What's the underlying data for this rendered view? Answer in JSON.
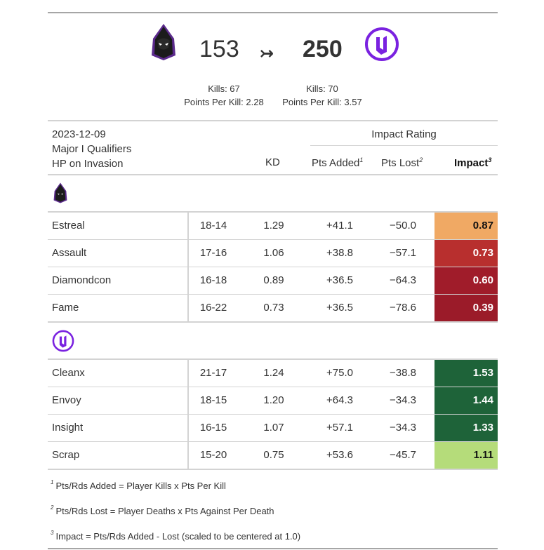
{
  "score": {
    "home_score": "153",
    "away_score": "250",
    "arrow": "↣",
    "home_stats": {
      "kills": "Kills: 67",
      "ppk": "Points Per Kill: 2.28"
    },
    "away_stats": {
      "kills": "Kills: 70",
      "ppk": "Points Per Kill: 3.57"
    }
  },
  "header": {
    "date": "2023-12-09",
    "event": "Major I Qualifiers",
    "mode": "HP on Invasion",
    "group_label": "Impact Rating",
    "col_kd": "KD",
    "col_added": "Pts Added",
    "col_added_note": "1",
    "col_lost": "Pts Lost",
    "col_lost_note": "2",
    "col_impact": "Impact",
    "col_impact_note": "3"
  },
  "teams": [
    {
      "logo": "hooded-figure-logo-icon",
      "players": [
        {
          "name": "Estreal",
          "record": "18-14",
          "kd": "1.29",
          "added": "+41.1",
          "lost": "−50.0",
          "impact": "0.87",
          "color": "#f0a964",
          "text_color": "#111111"
        },
        {
          "name": "Assault",
          "record": "17-16",
          "kd": "1.06",
          "added": "+38.8",
          "lost": "−57.1",
          "impact": "0.73",
          "color": "#b82f2e",
          "text_color": "#ffffff"
        },
        {
          "name": "Diamondcon",
          "record": "16-18",
          "kd": "0.89",
          "added": "+36.5",
          "lost": "−64.3",
          "impact": "0.60",
          "color": "#a01c2a",
          "text_color": "#ffffff"
        },
        {
          "name": "Fame",
          "record": "16-22",
          "kd": "0.73",
          "added": "+36.5",
          "lost": "−78.6",
          "impact": "0.39",
          "color": "#9b1b29",
          "text_color": "#ffffff"
        }
      ]
    },
    {
      "logo": "purple-shield-logo-icon",
      "players": [
        {
          "name": "Cleanx",
          "record": "21-17",
          "kd": "1.24",
          "added": "+75.0",
          "lost": "−38.8",
          "impact": "1.53",
          "color": "#1e6339",
          "text_color": "#ffffff"
        },
        {
          "name": "Envoy",
          "record": "18-15",
          "kd": "1.20",
          "added": "+64.3",
          "lost": "−34.3",
          "impact": "1.44",
          "color": "#1e6339",
          "text_color": "#ffffff"
        },
        {
          "name": "Insight",
          "record": "16-15",
          "kd": "1.07",
          "added": "+57.1",
          "lost": "−34.3",
          "impact": "1.33",
          "color": "#1e6339",
          "text_color": "#ffffff"
        },
        {
          "name": "Scrap",
          "record": "15-20",
          "kd": "0.75",
          "added": "+53.6",
          "lost": "−45.7",
          "impact": "1.11",
          "color": "#b5dc7a",
          "text_color": "#111111"
        }
      ]
    }
  ],
  "footnotes": [
    {
      "mark": "1",
      "text": "Pts/Rds Added = Player Kills x Pts Per Kill"
    },
    {
      "mark": "2",
      "text": "Pts/Rds Lost = Player Deaths x Pts Against Per Death"
    },
    {
      "mark": "3",
      "text": "Impact = Pts/Rds Added - Lost (scaled to be centered at 1.0)"
    }
  ]
}
